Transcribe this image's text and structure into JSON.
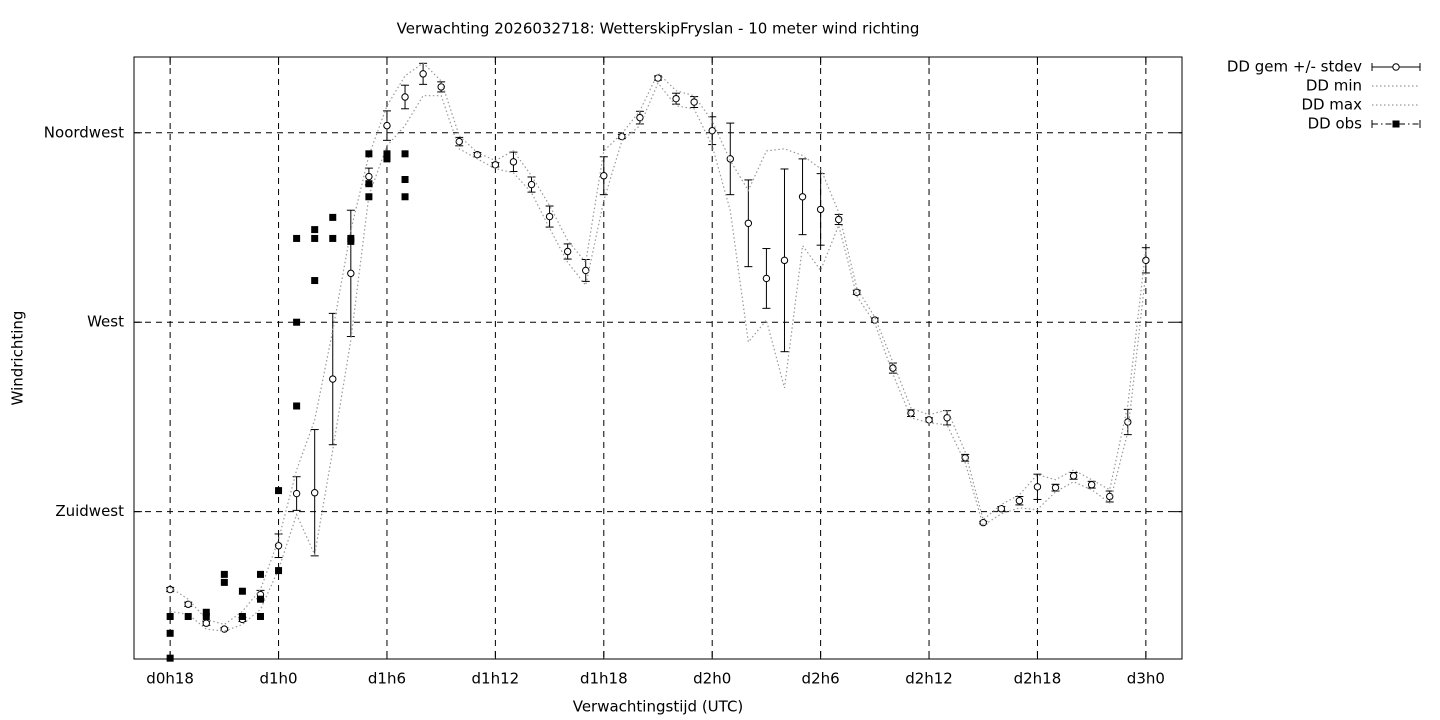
{
  "chart_data": {
    "type": "errorbar",
    "title": "Verwachting 2026032718: WetterskipFryslan - 10 meter wind richting",
    "x_label": "Verwachtingstijd (UTC)",
    "y_label": "Windrichting",
    "xlim": [
      16,
      74
    ],
    "ylim": [
      190,
      333
    ],
    "xticks": [
      {
        "value": 18,
        "label": "d0h18"
      },
      {
        "value": 24,
        "label": "d1h0"
      },
      {
        "value": 30,
        "label": "d1h6"
      },
      {
        "value": 36,
        "label": "d1h12"
      },
      {
        "value": 42,
        "label": "d1h18"
      },
      {
        "value": 48,
        "label": "d2h0"
      },
      {
        "value": 54,
        "label": "d2h6"
      },
      {
        "value": 60,
        "label": "d2h12"
      },
      {
        "value": 66,
        "label": "d2h18"
      },
      {
        "value": 72,
        "label": "d3h0"
      }
    ],
    "yticks": [
      {
        "value": 225,
        "label": "Zuidwest"
      },
      {
        "value": 270,
        "label": "West"
      },
      {
        "value": 315,
        "label": "Noordwest"
      }
    ],
    "grid": true,
    "legend": "outside-top-right",
    "x": [
      18,
      19,
      20,
      21,
      22,
      23,
      24,
      25,
      26,
      27,
      28,
      29,
      30,
      31,
      32,
      33,
      34,
      35,
      36,
      37,
      38,
      39,
      40,
      41,
      42,
      43,
      44,
      45,
      46,
      47,
      48,
      49,
      50,
      51,
      52,
      53,
      54,
      55,
      56,
      57,
      58,
      59,
      60,
      61,
      62,
      63,
      64,
      65,
      66,
      67,
      68,
      69,
      70,
      71,
      72
    ],
    "series": [
      {
        "name": "DD gem +/- stdev",
        "color": "#000000",
        "style": "errorbar",
        "values": [
          206.5,
          203.0,
          198.5,
          197.1,
          199.4,
          205.3,
          216.9,
          229.3,
          229.5,
          256.5,
          281.6,
          304.6,
          316.7,
          323.5,
          329.0,
          325.9,
          312.9,
          309.8,
          307.4,
          308.1,
          302.7,
          295.1,
          286.8,
          282.3,
          304.8,
          314.1,
          318.6,
          328.0,
          323.1,
          322.3,
          315.5,
          308.8,
          293.5,
          280.4,
          284.7,
          299.8,
          296.8,
          294.4,
          277.1,
          270.5,
          259.1,
          248.4,
          246.8,
          247.3,
          237.8,
          222.4,
          225.7,
          227.6,
          230.9,
          230.7,
          233.5,
          231.4,
          228.6,
          246.3,
          284.7
        ],
        "errors": [
          0.5,
          0.5,
          0.5,
          0.3,
          0.5,
          1,
          2.8,
          4,
          15,
          15.6,
          15,
          2,
          3.5,
          2.8,
          2.5,
          1.2,
          1,
          0.5,
          0.5,
          2.3,
          1.8,
          2.5,
          1.8,
          2.6,
          4.5,
          0.5,
          1.5,
          0.5,
          1.3,
          1.3,
          3.3,
          8.5,
          10.3,
          7.1,
          21.7,
          9,
          8.5,
          1.2,
          0.5,
          0.5,
          1.2,
          0.8,
          0.5,
          1.7,
          0.8,
          0.3,
          0.5,
          1,
          3,
          0.8,
          0.8,
          0.8,
          1.3,
          3,
          3
        ]
      },
      {
        "name": "DD min",
        "color": "#999999",
        "style": "dotted",
        "values": [
          201.3,
          200.6,
          197.1,
          196.6,
          198.2,
          201.8,
          211.3,
          224.3,
          214.8,
          239.7,
          265.7,
          300.1,
          311.9,
          316.7,
          323.8,
          323.8,
          311.2,
          308.8,
          306.5,
          305.5,
          300.8,
          292.3,
          284.2,
          278.8,
          298.9,
          313.1,
          316.7,
          326.8,
          321.4,
          320.7,
          311.9,
          296.5,
          265.3,
          270.5,
          254.4,
          288.2,
          282.3,
          293.0,
          276.2,
          269.8,
          257.7,
          247.3,
          246.1,
          245.6,
          236.6,
          221.7,
          224.5,
          225.9,
          225.5,
          229.7,
          232.1,
          230.2,
          227.1,
          243.9,
          281.8
        ]
      },
      {
        "name": "DD max",
        "color": "#999999",
        "style": "dotted",
        "values": [
          207.0,
          204.2,
          199.4,
          198.2,
          201.3,
          206.5,
          218.4,
          234.9,
          246.8,
          268.1,
          291.8,
          309.6,
          321.4,
          328.5,
          331.6,
          327.3,
          314.3,
          310.3,
          308.4,
          310.7,
          304.8,
          297.7,
          289.4,
          284.2,
          310.7,
          314.8,
          320.2,
          329.2,
          325.0,
          323.8,
          317.8,
          308.4,
          301.3,
          310.7,
          311.2,
          309.6,
          306.5,
          296.1,
          278.1,
          271.2,
          260.5,
          249.6,
          248.0,
          249.2,
          239.2,
          223.1,
          226.7,
          229.0,
          233.8,
          232.6,
          234.9,
          232.6,
          230.2,
          250.3,
          287.5
        ]
      },
      {
        "name": "DD obs",
        "color": "#000000",
        "style": "points",
        "x": [
          18,
          18,
          18,
          19,
          20,
          20,
          21,
          21,
          22,
          22,
          23,
          23,
          23,
          24,
          24,
          25,
          25,
          25,
          26,
          26,
          26,
          27,
          27,
          28,
          28,
          29,
          29,
          29,
          30,
          30,
          30,
          31,
          31,
          31
        ],
        "values": [
          200.1,
          196.1,
          190.2,
          200.1,
          201.1,
          200.1,
          210.1,
          208.2,
          206.1,
          200.1,
          210.1,
          204.2,
          200.1,
          230.0,
          211.0,
          289.9,
          270.0,
          250.1,
          292.0,
          289.9,
          279.9,
          294.9,
          289.9,
          289.9,
          289.2,
          310.0,
          302.9,
          299.8,
          310.0,
          309.3,
          308.8,
          310.0,
          303.9,
          299.8
        ]
      }
    ]
  }
}
